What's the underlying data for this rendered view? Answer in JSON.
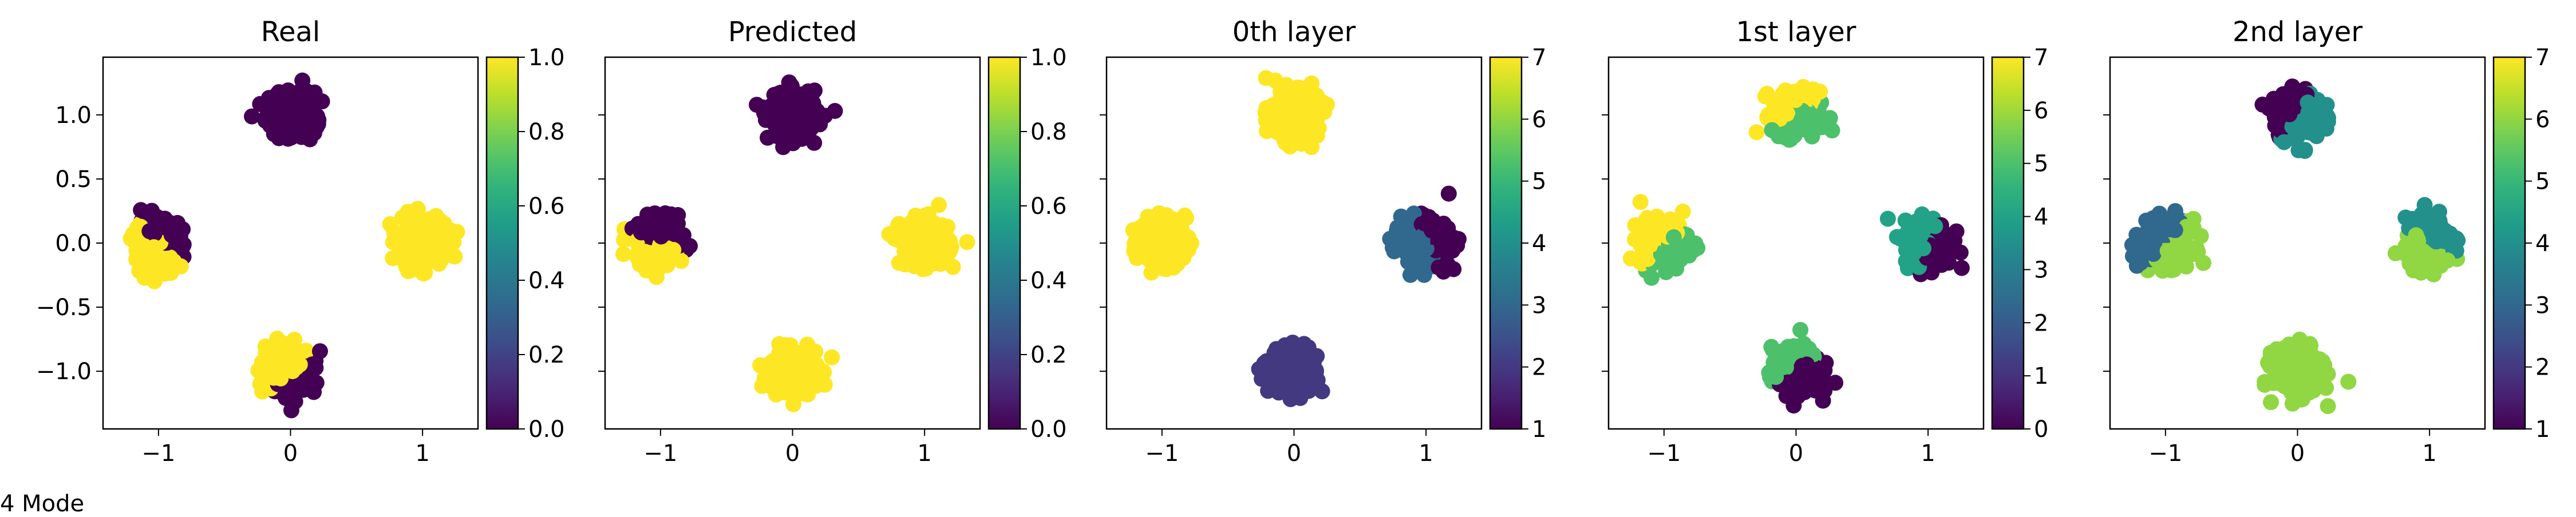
{
  "figure": {
    "caption": "4 Mode"
  },
  "chart_data": [
    {
      "type": "scatter",
      "title": "Real",
      "xlim": [
        -1.42,
        1.42
      ],
      "ylim": [
        -1.45,
        1.45
      ],
      "x_ticks": [
        -1,
        0,
        1
      ],
      "y_ticks": [
        -1.0,
        -0.5,
        0.0,
        0.5,
        1.0
      ],
      "y_tick_labels": [
        "−1.0",
        "−0.5",
        "0.0",
        "0.5",
        "1.0"
      ],
      "colorbar": {
        "min": 0.0,
        "max": 1.0,
        "ticks": [
          0.0,
          0.2,
          0.4,
          0.6,
          0.8,
          1.0
        ],
        "tick_labels": [
          "0.0",
          "0.2",
          "0.4",
          "0.6",
          "0.8",
          "1.0"
        ]
      },
      "clusters": [
        {
          "center": [
            0,
            1
          ],
          "color_value": 0
        },
        {
          "center": [
            1,
            0
          ],
          "color_value": 1
        },
        {
          "center": [
            -1,
            0
          ],
          "color_value": 1,
          "split": {
            "angle": 45,
            "value": 0
          }
        },
        {
          "center": [
            0,
            -1
          ],
          "color_value": 1,
          "split": {
            "angle": -50,
            "value": 0
          }
        }
      ]
    },
    {
      "type": "scatter",
      "title": "Predicted",
      "xlim": [
        -1.42,
        1.42
      ],
      "ylim": [
        -1.45,
        1.45
      ],
      "x_ticks": [
        -1,
        0,
        1
      ],
      "y_ticks": [
        -1.0,
        -0.5,
        0.0,
        0.5,
        1.0
      ],
      "colorbar": {
        "min": 0.0,
        "max": 1.0,
        "ticks": [
          0.0,
          0.2,
          0.4,
          0.6,
          0.8,
          1.0
        ],
        "tick_labels": [
          "0.0",
          "0.2",
          "0.4",
          "0.6",
          "0.8",
          "1.0"
        ]
      },
      "clusters": [
        {
          "center": [
            0,
            1
          ],
          "color_value": 0
        },
        {
          "center": [
            1,
            0
          ],
          "color_value": 1
        },
        {
          "center": [
            -1,
            0
          ],
          "color_value": 1,
          "split": {
            "angle": 70,
            "value": 0
          }
        },
        {
          "center": [
            0,
            -1
          ],
          "color_value": 1
        }
      ]
    },
    {
      "type": "scatter",
      "title": "0th layer",
      "xlim": [
        -1.42,
        1.42
      ],
      "ylim": [
        -1.45,
        1.45
      ],
      "x_ticks": [
        -1,
        0,
        1
      ],
      "y_ticks": [
        -1.0,
        -0.5,
        0.0,
        0.5,
        1.0
      ],
      "colorbar": {
        "min": 1,
        "max": 7,
        "ticks": [
          1,
          2,
          3,
          4,
          5,
          6,
          7
        ],
        "tick_labels": [
          "1",
          "2",
          "3",
          "4",
          "5",
          "6",
          "7"
        ]
      },
      "clusters": [
        {
          "center": [
            0,
            1
          ],
          "color_value": 7
        },
        {
          "center": [
            1,
            0
          ],
          "color_value": 3,
          "split": {
            "angle": 20,
            "value": 1
          }
        },
        {
          "center": [
            -1,
            0
          ],
          "color_value": 7
        },
        {
          "center": [
            0,
            -1
          ],
          "color_value": 2
        }
      ]
    },
    {
      "type": "scatter",
      "title": "1st layer",
      "xlim": [
        -1.42,
        1.42
      ],
      "ylim": [
        -1.45,
        1.45
      ],
      "x_ticks": [
        -1,
        0,
        1
      ],
      "y_ticks": [
        -1.0,
        -0.5,
        0.0,
        0.5,
        1.0
      ],
      "colorbar": {
        "min": 0,
        "max": 7,
        "ticks": [
          0,
          1,
          2,
          3,
          4,
          5,
          6,
          7
        ],
        "tick_labels": [
          "0",
          "1",
          "2",
          "3",
          "4",
          "5",
          "6",
          "7"
        ]
      },
      "clusters": [
        {
          "center": [
            0,
            1
          ],
          "color_value": 5,
          "split": {
            "angle": 120,
            "value": 7
          }
        },
        {
          "center": [
            1,
            0
          ],
          "color_value": 4,
          "split": {
            "angle": -20,
            "value": 0
          }
        },
        {
          "center": [
            -1,
            0
          ],
          "color_value": 7,
          "split": {
            "angle": -45,
            "value": 5
          }
        },
        {
          "center": [
            0,
            -1
          ],
          "color_value": 0,
          "split": {
            "angle": 120,
            "value": 5
          }
        }
      ]
    },
    {
      "type": "scatter",
      "title": "2nd layer",
      "xlim": [
        -1.42,
        1.42
      ],
      "ylim": [
        -1.45,
        1.45
      ],
      "x_ticks": [
        -1,
        0,
        1
      ],
      "y_ticks": [
        -1.0,
        -0.5,
        0.0,
        0.5,
        1.0
      ],
      "colorbar": {
        "min": 1,
        "max": 7,
        "ticks": [
          1,
          2,
          3,
          4,
          5,
          6,
          7
        ],
        "tick_labels": [
          "1",
          "2",
          "3",
          "4",
          "5",
          "6",
          "7"
        ]
      },
      "clusters": [
        {
          "center": [
            0,
            1
          ],
          "color_value": 4,
          "split": {
            "angle": 150,
            "value": 1
          }
        },
        {
          "center": [
            1,
            0
          ],
          "color_value": 6,
          "split": {
            "angle": 60,
            "value": 4
          }
        },
        {
          "center": [
            -1,
            0
          ],
          "color_value": 3,
          "split": {
            "angle": -40,
            "value": 6
          }
        },
        {
          "center": [
            0,
            -1
          ],
          "color_value": 6
        }
      ]
    }
  ]
}
